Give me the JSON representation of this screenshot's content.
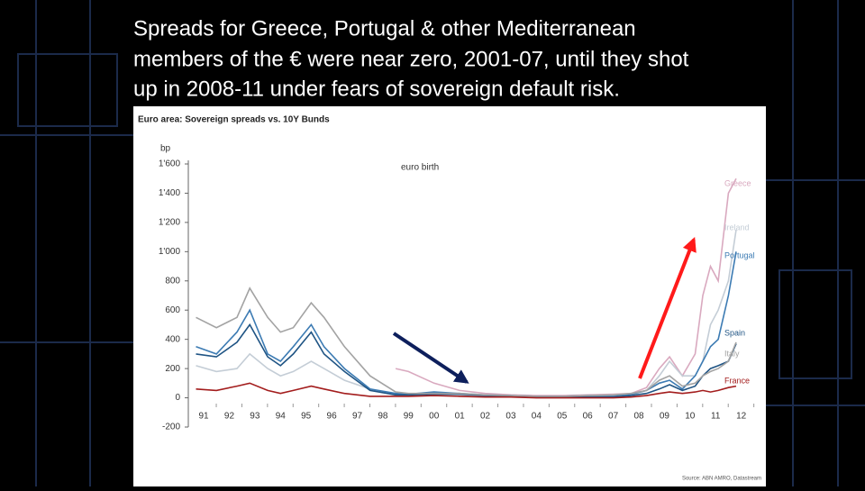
{
  "slide": {
    "title_lines": [
      "Spreads for Greece, Portugal & other Mediterranean",
      "members of the € were near zero, 2001-07, until they shot",
      "up in 2008-11 under fears of sovereign default risk."
    ]
  },
  "chart_data": {
    "type": "line",
    "title": "Euro area: Sovereign spreads vs. 10Y Bunds",
    "y_label": "bp",
    "annotation": "euro birth",
    "source": "Source: ABN AMRO, Datastream",
    "x": [
      1990.7,
      1991.5,
      1992.3,
      1992.8,
      1993.5,
      1994.0,
      1994.5,
      1995.2,
      1995.7,
      1996.5,
      1997.5,
      1998.5,
      1999.0,
      2000,
      2001,
      2002,
      2003,
      2004,
      2005,
      2006,
      2007,
      2007.7,
      2008.3,
      2008.8,
      2009.2,
      2009.7,
      2010.2,
      2010.5,
      2010.8,
      2011.1,
      2011.5,
      2011.8
    ],
    "series": [
      {
        "name": "Greece",
        "color": "#d9a9bf",
        "values": [
          null,
          null,
          null,
          null,
          null,
          null,
          null,
          null,
          null,
          null,
          null,
          200,
          180,
          100,
          50,
          30,
          20,
          15,
          15,
          20,
          25,
          30,
          70,
          200,
          280,
          150,
          300,
          700,
          900,
          800,
          1400,
          1500
        ]
      },
      {
        "name": "Ireland",
        "color": "#c4cdd6",
        "values": [
          220,
          180,
          200,
          300,
          200,
          150,
          180,
          250,
          200,
          120,
          60,
          20,
          15,
          20,
          20,
          10,
          5,
          5,
          5,
          5,
          5,
          20,
          50,
          150,
          250,
          150,
          150,
          250,
          500,
          600,
          800,
          1150
        ]
      },
      {
        "name": "Portugal",
        "color": "#3c7bb3",
        "values": [
          350,
          300,
          450,
          600,
          300,
          250,
          350,
          500,
          350,
          200,
          60,
          30,
          25,
          40,
          30,
          20,
          15,
          10,
          10,
          15,
          15,
          25,
          50,
          100,
          120,
          60,
          150,
          250,
          350,
          400,
          700,
          1000
        ]
      },
      {
        "name": "Spain",
        "color": "#1f5484",
        "values": [
          300,
          280,
          380,
          500,
          280,
          220,
          300,
          450,
          300,
          180,
          50,
          20,
          20,
          25,
          25,
          15,
          10,
          5,
          5,
          5,
          5,
          15,
          30,
          60,
          90,
          50,
          80,
          150,
          200,
          220,
          250,
          370
        ]
      },
      {
        "name": "Italy",
        "color": "#a3a3a3",
        "values": [
          550,
          480,
          550,
          750,
          550,
          450,
          480,
          650,
          550,
          350,
          150,
          40,
          30,
          30,
          30,
          20,
          15,
          10,
          10,
          15,
          20,
          30,
          50,
          120,
          150,
          80,
          100,
          150,
          180,
          200,
          250,
          380
        ]
      },
      {
        "name": "France",
        "color": "#a31d1d",
        "values": [
          60,
          50,
          80,
          100,
          50,
          30,
          50,
          80,
          60,
          30,
          10,
          10,
          10,
          15,
          10,
          5,
          5,
          0,
          0,
          0,
          0,
          5,
          15,
          30,
          40,
          30,
          40,
          50,
          40,
          50,
          70,
          80
        ]
      }
    ],
    "xlim": [
      1990.4,
      2012.4
    ],
    "xticks": [
      {
        "value": 1991,
        "label": "91"
      },
      {
        "value": 1992,
        "label": "92"
      },
      {
        "value": 1993,
        "label": "93"
      },
      {
        "value": 1994,
        "label": "94"
      },
      {
        "value": 1995,
        "label": "95"
      },
      {
        "value": 1996,
        "label": "96"
      },
      {
        "value": 1997,
        "label": "97"
      },
      {
        "value": 1998,
        "label": "98"
      },
      {
        "value": 1999,
        "label": "99"
      },
      {
        "value": 2000,
        "label": "00"
      },
      {
        "value": 2001,
        "label": "01"
      },
      {
        "value": 2002,
        "label": "02"
      },
      {
        "value": 2003,
        "label": "03"
      },
      {
        "value": 2004,
        "label": "04"
      },
      {
        "value": 2005,
        "label": "05"
      },
      {
        "value": 2006,
        "label": "06"
      },
      {
        "value": 2007,
        "label": "07"
      },
      {
        "value": 2008,
        "label": "08"
      },
      {
        "value": 2009,
        "label": "09"
      },
      {
        "value": 2010,
        "label": "10"
      },
      {
        "value": 2011,
        "label": "11"
      },
      {
        "value": 2012,
        "label": "12"
      }
    ],
    "ylim": [
      -200,
      1600
    ],
    "yticks": [
      {
        "value": 1600,
        "label": "1'600"
      },
      {
        "value": 1400,
        "label": "1'400"
      },
      {
        "value": 1200,
        "label": "1'200"
      },
      {
        "value": 1000,
        "label": "1'000"
      },
      800,
      600,
      400,
      200,
      0,
      -200
    ]
  }
}
